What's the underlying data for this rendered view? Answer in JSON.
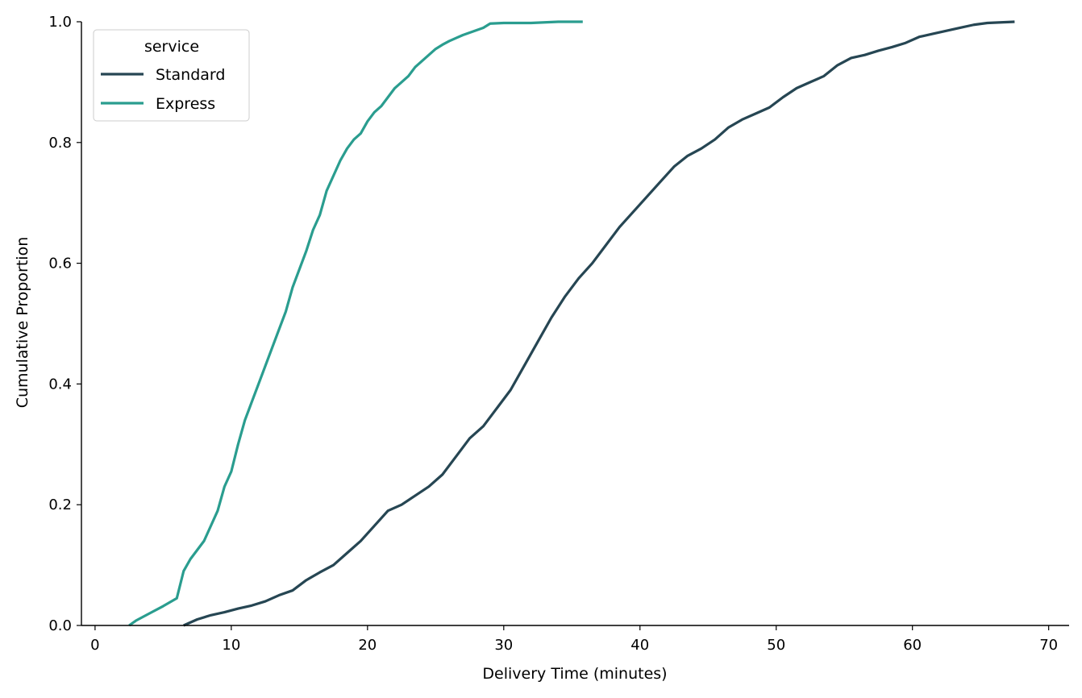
{
  "chart_data": {
    "type": "line",
    "xlabel": "Delivery Time (minutes)",
    "ylabel": "Cumulative Proportion",
    "xlim": [
      -1,
      71.5
    ],
    "ylim": [
      0,
      1.0
    ],
    "xticks": [
      0,
      10,
      20,
      30,
      40,
      50,
      60,
      70
    ],
    "yticks": [
      0.0,
      0.2,
      0.4,
      0.6,
      0.8,
      1.0
    ],
    "xtick_labels": [
      "0",
      "10",
      "20",
      "30",
      "40",
      "50",
      "60",
      "70"
    ],
    "ytick_labels": [
      "0.0",
      "0.2",
      "0.4",
      "0.6",
      "0.8",
      "1.0"
    ],
    "grid": false,
    "legend": {
      "title": "service",
      "placement": "top-left"
    },
    "series": [
      {
        "name": "Standard",
        "color": "#264653",
        "points": [
          [
            6.5,
            0.0
          ],
          [
            7.5,
            0.01
          ],
          [
            8.5,
            0.017
          ],
          [
            9.5,
            0.022
          ],
          [
            10.5,
            0.028
          ],
          [
            11.5,
            0.033
          ],
          [
            12.5,
            0.04
          ],
          [
            13.5,
            0.05
          ],
          [
            14.5,
            0.058
          ],
          [
            15.5,
            0.075
          ],
          [
            16.5,
            0.088
          ],
          [
            17.5,
            0.1
          ],
          [
            18.5,
            0.12
          ],
          [
            19.5,
            0.14
          ],
          [
            20.5,
            0.165
          ],
          [
            21.5,
            0.19
          ],
          [
            22.5,
            0.2
          ],
          [
            23.5,
            0.215
          ],
          [
            24.5,
            0.23
          ],
          [
            25.5,
            0.25
          ],
          [
            26.5,
            0.28
          ],
          [
            27.5,
            0.31
          ],
          [
            28.5,
            0.33
          ],
          [
            29.5,
            0.36
          ],
          [
            30.5,
            0.39
          ],
          [
            31.5,
            0.43
          ],
          [
            32.5,
            0.47
          ],
          [
            33.5,
            0.51
          ],
          [
            34.5,
            0.545
          ],
          [
            35.5,
            0.575
          ],
          [
            36.5,
            0.6
          ],
          [
            37.5,
            0.63
          ],
          [
            38.5,
            0.66
          ],
          [
            39.5,
            0.685
          ],
          [
            40.5,
            0.71
          ],
          [
            41.5,
            0.735
          ],
          [
            42.5,
            0.76
          ],
          [
            43.5,
            0.778
          ],
          [
            44.5,
            0.79
          ],
          [
            45.5,
            0.805
          ],
          [
            46.5,
            0.825
          ],
          [
            47.5,
            0.838
          ],
          [
            48.5,
            0.848
          ],
          [
            49.5,
            0.858
          ],
          [
            50.5,
            0.875
          ],
          [
            51.5,
            0.89
          ],
          [
            52.5,
            0.9
          ],
          [
            53.5,
            0.91
          ],
          [
            54.5,
            0.928
          ],
          [
            55.5,
            0.94
          ],
          [
            56.5,
            0.945
          ],
          [
            57.5,
            0.952
          ],
          [
            58.5,
            0.958
          ],
          [
            59.5,
            0.965
          ],
          [
            60.5,
            0.975
          ],
          [
            61.5,
            0.98
          ],
          [
            62.5,
            0.985
          ],
          [
            63.5,
            0.99
          ],
          [
            64.5,
            0.995
          ],
          [
            65.5,
            0.998
          ],
          [
            67.5,
            1.0
          ]
        ]
      },
      {
        "name": "Express",
        "color": "#2a9d8f",
        "points": [
          [
            2.5,
            0.0
          ],
          [
            3.0,
            0.008
          ],
          [
            4.0,
            0.02
          ],
          [
            5.0,
            0.032
          ],
          [
            6.0,
            0.045
          ],
          [
            6.5,
            0.09
          ],
          [
            7.0,
            0.11
          ],
          [
            8.0,
            0.14
          ],
          [
            9.0,
            0.19
          ],
          [
            9.5,
            0.23
          ],
          [
            10.0,
            0.255
          ],
          [
            10.5,
            0.3
          ],
          [
            11.0,
            0.34
          ],
          [
            11.5,
            0.37
          ],
          [
            12.0,
            0.4
          ],
          [
            12.5,
            0.43
          ],
          [
            13.0,
            0.46
          ],
          [
            13.5,
            0.49
          ],
          [
            14.0,
            0.52
          ],
          [
            14.5,
            0.56
          ],
          [
            15.0,
            0.59
          ],
          [
            15.5,
            0.62
          ],
          [
            16.0,
            0.655
          ],
          [
            16.5,
            0.68
          ],
          [
            17.0,
            0.72
          ],
          [
            17.5,
            0.745
          ],
          [
            18.0,
            0.77
          ],
          [
            18.5,
            0.79
          ],
          [
            19.0,
            0.805
          ],
          [
            19.5,
            0.815
          ],
          [
            20.0,
            0.835
          ],
          [
            20.5,
            0.85
          ],
          [
            21.0,
            0.86
          ],
          [
            21.5,
            0.875
          ],
          [
            22.0,
            0.89
          ],
          [
            22.5,
            0.9
          ],
          [
            23.0,
            0.91
          ],
          [
            23.5,
            0.925
          ],
          [
            24.0,
            0.935
          ],
          [
            24.5,
            0.945
          ],
          [
            25.0,
            0.955
          ],
          [
            25.5,
            0.962
          ],
          [
            26.0,
            0.968
          ],
          [
            26.5,
            0.973
          ],
          [
            27.0,
            0.978
          ],
          [
            27.5,
            0.982
          ],
          [
            28.0,
            0.986
          ],
          [
            28.5,
            0.99
          ],
          [
            29.0,
            0.997
          ],
          [
            30.0,
            0.998
          ],
          [
            32.0,
            0.998
          ],
          [
            34.0,
            1.0
          ],
          [
            35.8,
            1.0
          ]
        ]
      }
    ]
  }
}
